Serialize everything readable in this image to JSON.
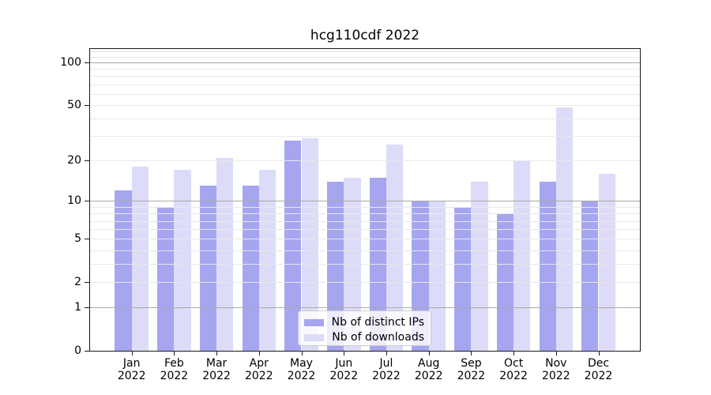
{
  "chart_data": {
    "type": "bar",
    "title": "hcg110cdf 2022",
    "categories": [
      "Jan",
      "Feb",
      "Mar",
      "Apr",
      "May",
      "Jun",
      "Jul",
      "Aug",
      "Sep",
      "Oct",
      "Nov",
      "Dec"
    ],
    "year_label": "2022",
    "series": [
      {
        "name": "Nb of distinct IPs",
        "color": "#a5a5f0",
        "values": [
          12,
          9,
          13,
          13,
          28,
          14,
          15,
          10,
          9,
          8,
          14,
          10
        ]
      },
      {
        "name": "Nb of downloads",
        "color": "#dcdcf8",
        "values": [
          18,
          17,
          21,
          17,
          29,
          15,
          26,
          10,
          14,
          20,
          48,
          16
        ]
      }
    ],
    "yscale": "log1p",
    "ylim": [
      0,
      124
    ],
    "yticks": [
      0,
      1,
      2,
      5,
      10,
      20,
      50,
      100
    ],
    "grid": {
      "major_values": [
        1,
        10,
        100
      ],
      "minor_values": [
        2,
        3,
        4,
        5,
        6,
        7,
        8,
        9,
        20,
        30,
        40,
        50,
        60,
        70,
        80,
        90,
        110,
        120
      ],
      "major_color": "#aaaaaa",
      "minor_color": "#e8e8ea"
    },
    "legend_position": "lower center",
    "xlabel": "",
    "ylabel": ""
  }
}
